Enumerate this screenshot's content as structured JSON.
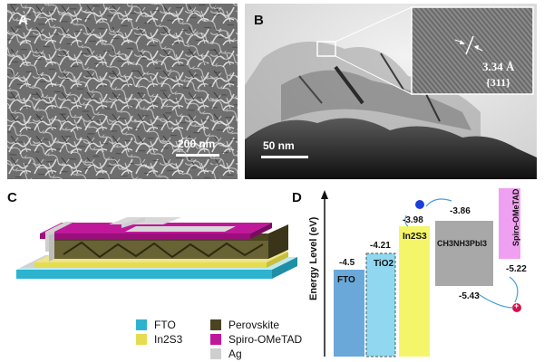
{
  "panels": {
    "a": {
      "label": "A",
      "scale": "200 nm"
    },
    "b": {
      "label": "B",
      "scale": "50 nm",
      "inset_dspacing": "3.34 Å",
      "inset_plane": "{311}"
    },
    "c": {
      "label": "C"
    },
    "d": {
      "label": "D"
    }
  },
  "legend": [
    {
      "name": "FTO",
      "color": "#2cb4cf"
    },
    {
      "name": "In2S3",
      "color": "#e6dc50"
    },
    {
      "name": "Ag",
      "color": "#cfcfcf"
    },
    {
      "name": "Perovskite",
      "color": "#4a4422"
    },
    {
      "name": "Spiro-OMeTAD",
      "color": "#c0189a"
    }
  ],
  "energy": {
    "axis_label": "Energy Level (eV)",
    "levels": [
      {
        "material": "FTO",
        "value": "-4.5",
        "color": "#6aa8d9"
      },
      {
        "material": "TiO2",
        "value": "-4.21",
        "color": "#8fd8f0"
      },
      {
        "material": "In2S3",
        "value": "-3.98",
        "color": "#f5f56a"
      },
      {
        "material": "CH3NH3PbI3",
        "cb": "-3.86",
        "vb": "-5.43",
        "color": "#a8a8a8"
      },
      {
        "material": "Spiro-OMeTAD",
        "cb": "",
        "vb": "-5.22",
        "color": "#f0a0f0"
      }
    ],
    "electron_symbol": "",
    "hole_symbol": "+"
  }
}
